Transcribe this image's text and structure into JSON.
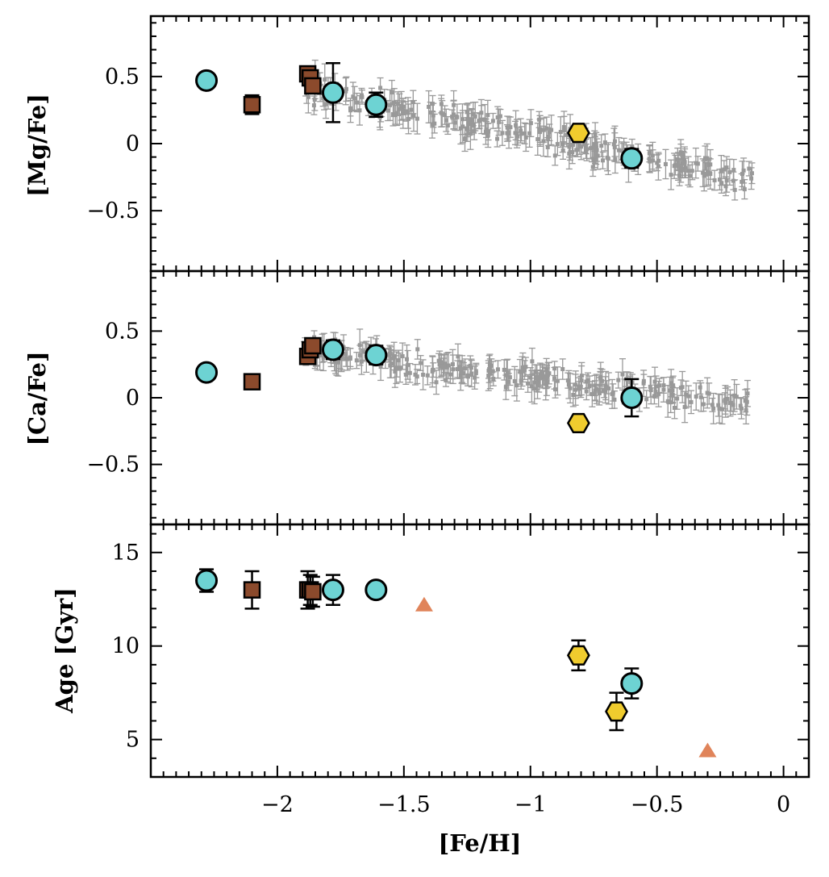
{
  "chart_data": {
    "type": "scatter",
    "shared_xaxis": {
      "label": "[Fe/H]",
      "range": [
        -2.5,
        0.1
      ],
      "tick_labels": [
        {
          "v": -2,
          "t": "−2"
        },
        {
          "v": -1.5,
          "t": "−1.5"
        },
        {
          "v": -1,
          "t": "−1"
        },
        {
          "v": -0.5,
          "t": "−0.5"
        },
        {
          "v": 0,
          "t": "0"
        }
      ]
    },
    "colors": {
      "circle": "#6dd3d3",
      "square": "#8b4a2c",
      "hexagon": "#f0cc2e",
      "triangle": "#e0845a",
      "field": "#999999",
      "errorbar": "#000000"
    },
    "panels": [
      {
        "name": "mg",
        "ylabel": "[Mg/Fe]",
        "ylim": [
          -0.95,
          0.95
        ],
        "tick_labels": [
          {
            "v": 0.5,
            "t": "0.5"
          },
          {
            "v": 0,
            "t": "0"
          },
          {
            "v": -0.5,
            "t": "−0.5"
          }
        ],
        "field_stars": {
          "x_range": [
            -1.9,
            -0.12
          ],
          "trend_start": 0.42,
          "trend_end": -0.28,
          "scatter": 0.08,
          "n": 260,
          "error": 0.08
        },
        "series": [
          {
            "name": "circles",
            "marker": "circle",
            "points": [
              {
                "x": -2.28,
                "y": 0.47,
                "err": 0.05
              },
              {
                "x": -1.78,
                "y": 0.38,
                "err": 0.22
              },
              {
                "x": -1.61,
                "y": 0.29,
                "err": 0.09
              },
              {
                "x": -0.6,
                "y": -0.11,
                "err": 0.07
              }
            ]
          },
          {
            "name": "squares",
            "marker": "square",
            "points": [
              {
                "x": -2.1,
                "y": 0.29,
                "err": 0.07
              },
              {
                "x": -1.88,
                "y": 0.52,
                "err": 0.04
              },
              {
                "x": -1.87,
                "y": 0.49,
                "err": 0.04
              },
              {
                "x": -1.86,
                "y": 0.43,
                "err": 0.05
              }
            ]
          },
          {
            "name": "hexagons",
            "marker": "hexagon",
            "points": [
              {
                "x": -0.81,
                "y": 0.08,
                "err": 0.04
              }
            ]
          }
        ]
      },
      {
        "name": "ca",
        "ylabel": "[Ca/Fe]",
        "ylim": [
          -0.95,
          0.95
        ],
        "tick_labels": [
          {
            "v": 0.5,
            "t": "0.5"
          },
          {
            "v": 0,
            "t": "0"
          },
          {
            "v": -0.5,
            "t": "−0.5"
          }
        ],
        "field_stars": {
          "x_range": [
            -1.9,
            -0.12
          ],
          "trend_start": 0.36,
          "trend_end": -0.05,
          "scatter": 0.07,
          "n": 260,
          "error": 0.08
        },
        "series": [
          {
            "name": "circles",
            "marker": "circle",
            "points": [
              {
                "x": -2.28,
                "y": 0.19,
                "err": 0.05
              },
              {
                "x": -1.78,
                "y": 0.36,
                "err": 0.07
              },
              {
                "x": -1.61,
                "y": 0.32,
                "err": 0.07
              },
              {
                "x": -0.6,
                "y": 0.0,
                "err": 0.14
              }
            ]
          },
          {
            "name": "squares",
            "marker": "square",
            "points": [
              {
                "x": -2.1,
                "y": 0.12,
                "err": 0.05
              },
              {
                "x": -1.88,
                "y": 0.31,
                "err": 0.04
              },
              {
                "x": -1.87,
                "y": 0.36,
                "err": 0.04
              },
              {
                "x": -1.86,
                "y": 0.39,
                "err": 0.04
              }
            ]
          },
          {
            "name": "hexagons",
            "marker": "hexagon",
            "points": [
              {
                "x": -0.81,
                "y": -0.19,
                "err": 0.04
              }
            ]
          }
        ]
      },
      {
        "name": "age",
        "ylabel": "Age [Gyr]",
        "ylim": [
          3,
          16.5
        ],
        "tick_labels": [
          {
            "v": 15,
            "t": "15"
          },
          {
            "v": 10,
            "t": "10"
          },
          {
            "v": 5,
            "t": "5"
          }
        ],
        "series": [
          {
            "name": "circles",
            "marker": "circle",
            "points": [
              {
                "x": -2.28,
                "y": 13.5,
                "err": 0.6
              },
              {
                "x": -1.78,
                "y": 13.0,
                "err": 0.8
              },
              {
                "x": -1.61,
                "y": 13.0,
                "err": 0.3
              },
              {
                "x": -0.6,
                "y": 8.0,
                "err": 0.8
              }
            ]
          },
          {
            "name": "squares",
            "marker": "square",
            "points": [
              {
                "x": -2.1,
                "y": 13.0,
                "err": 1.0
              },
              {
                "x": -1.88,
                "y": 13.0,
                "err": 1.0
              },
              {
                "x": -1.87,
                "y": 13.0,
                "err": 0.8
              },
              {
                "x": -1.86,
                "y": 12.9,
                "err": 0.8
              }
            ]
          },
          {
            "name": "hexagons",
            "marker": "hexagon",
            "points": [
              {
                "x": -0.81,
                "y": 9.5,
                "err": 0.8
              },
              {
                "x": -0.66,
                "y": 6.5,
                "err": 1.0
              }
            ]
          },
          {
            "name": "triangles",
            "marker": "triangle",
            "points": [
              {
                "x": -1.42,
                "y": 12.2
              },
              {
                "x": -0.3,
                "y": 4.4
              }
            ]
          }
        ]
      }
    ]
  }
}
